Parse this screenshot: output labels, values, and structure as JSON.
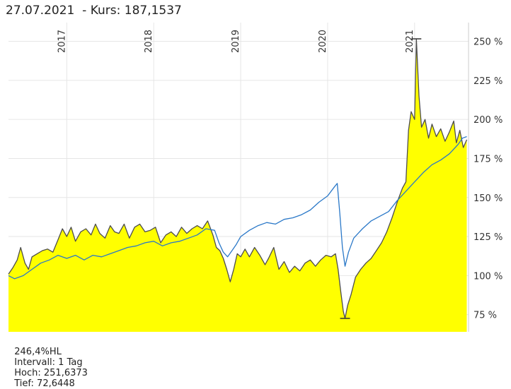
{
  "header": {
    "date": "27.07.2021",
    "price_label": "- Kurs: 187,1537"
  },
  "footer": {
    "change": "246,4%HL",
    "interval": "Intervall: 1 Tag",
    "high": "Hoch: 251,6373",
    "low": "Tief: 72,6448"
  },
  "chart_data": {
    "type": "area",
    "x_ticks": [
      "2017",
      "2018",
      "2019",
      "2020",
      "2021"
    ],
    "y_ticks": [
      "75 %",
      "100 %",
      "125 %",
      "150 %",
      "175 %",
      "200 %",
      "225 %",
      "250 %"
    ],
    "ylim": [
      64,
      262
    ],
    "xlim": [
      2016.33,
      2021.62
    ],
    "grid": true,
    "colors": {
      "fill": "#ffff00",
      "main_line": "#4d4d4d",
      "compare_line": "#2a78c8",
      "grid": "#e6e6e6"
    },
    "series": [
      {
        "role": "main",
        "points": [
          [
            2016.33,
            101
          ],
          [
            2016.38,
            105
          ],
          [
            2016.43,
            110
          ],
          [
            2016.47,
            118
          ],
          [
            2016.52,
            108
          ],
          [
            2016.56,
            104
          ],
          [
            2016.6,
            112
          ],
          [
            2016.66,
            114
          ],
          [
            2016.72,
            116
          ],
          [
            2016.78,
            117
          ],
          [
            2016.84,
            115
          ],
          [
            2016.9,
            123
          ],
          [
            2016.95,
            130
          ],
          [
            2017.0,
            125
          ],
          [
            2017.05,
            131
          ],
          [
            2017.1,
            122
          ],
          [
            2017.16,
            128
          ],
          [
            2017.22,
            130
          ],
          [
            2017.28,
            126
          ],
          [
            2017.33,
            133
          ],
          [
            2017.38,
            127
          ],
          [
            2017.44,
            124
          ],
          [
            2017.5,
            132
          ],
          [
            2017.55,
            128
          ],
          [
            2017.6,
            127
          ],
          [
            2017.66,
            133
          ],
          [
            2017.72,
            124
          ],
          [
            2017.78,
            131
          ],
          [
            2017.84,
            133
          ],
          [
            2017.9,
            128
          ],
          [
            2017.96,
            129
          ],
          [
            2018.02,
            131
          ],
          [
            2018.08,
            121
          ],
          [
            2018.14,
            126
          ],
          [
            2018.2,
            128
          ],
          [
            2018.26,
            125
          ],
          [
            2018.32,
            131
          ],
          [
            2018.38,
            127
          ],
          [
            2018.44,
            130
          ],
          [
            2018.5,
            132
          ],
          [
            2018.56,
            130
          ],
          [
            2018.62,
            135
          ],
          [
            2018.68,
            126
          ],
          [
            2018.72,
            118
          ],
          [
            2018.76,
            116
          ],
          [
            2018.8,
            111
          ],
          [
            2018.84,
            104
          ],
          [
            2018.88,
            96
          ],
          [
            2018.92,
            104
          ],
          [
            2018.96,
            114
          ],
          [
            2019.0,
            112
          ],
          [
            2019.05,
            117
          ],
          [
            2019.1,
            112
          ],
          [
            2019.16,
            118
          ],
          [
            2019.22,
            113
          ],
          [
            2019.28,
            107
          ],
          [
            2019.32,
            111
          ],
          [
            2019.38,
            118
          ],
          [
            2019.44,
            104
          ],
          [
            2019.5,
            109
          ],
          [
            2019.56,
            102
          ],
          [
            2019.62,
            106
          ],
          [
            2019.68,
            103
          ],
          [
            2019.74,
            108
          ],
          [
            2019.8,
            110
          ],
          [
            2019.86,
            106
          ],
          [
            2019.92,
            110
          ],
          [
            2019.98,
            113
          ],
          [
            2020.04,
            112
          ],
          [
            2020.09,
            114
          ],
          [
            2020.12,
            104
          ],
          [
            2020.15,
            90
          ],
          [
            2020.18,
            77
          ],
          [
            2020.2,
            72.6
          ],
          [
            2020.23,
            81
          ],
          [
            2020.27,
            88
          ],
          [
            2020.32,
            99
          ],
          [
            2020.38,
            104
          ],
          [
            2020.44,
            108
          ],
          [
            2020.5,
            111
          ],
          [
            2020.56,
            116
          ],
          [
            2020.62,
            121
          ],
          [
            2020.68,
            128
          ],
          [
            2020.74,
            137
          ],
          [
            2020.8,
            147
          ],
          [
            2020.86,
            156
          ],
          [
            2020.9,
            160
          ],
          [
            2020.93,
            193
          ],
          [
            2020.96,
            205
          ],
          [
            2021.0,
            200
          ],
          [
            2021.02,
            251.6
          ],
          [
            2021.05,
            215
          ],
          [
            2021.08,
            195
          ],
          [
            2021.12,
            200
          ],
          [
            2021.16,
            188
          ],
          [
            2021.2,
            197
          ],
          [
            2021.25,
            189
          ],
          [
            2021.3,
            194
          ],
          [
            2021.35,
            186
          ],
          [
            2021.4,
            192
          ],
          [
            2021.45,
            199
          ],
          [
            2021.48,
            185
          ],
          [
            2021.52,
            193
          ],
          [
            2021.56,
            182
          ],
          [
            2021.6,
            187
          ]
        ]
      },
      {
        "role": "comparison",
        "points": [
          [
            2016.33,
            100
          ],
          [
            2016.4,
            98
          ],
          [
            2016.5,
            100
          ],
          [
            2016.6,
            104
          ],
          [
            2016.7,
            108
          ],
          [
            2016.8,
            110
          ],
          [
            2016.9,
            113
          ],
          [
            2017.0,
            111
          ],
          [
            2017.1,
            113
          ],
          [
            2017.2,
            110
          ],
          [
            2017.3,
            113
          ],
          [
            2017.4,
            112
          ],
          [
            2017.5,
            114
          ],
          [
            2017.6,
            116
          ],
          [
            2017.7,
            118
          ],
          [
            2017.8,
            119
          ],
          [
            2017.9,
            121
          ],
          [
            2018.0,
            122
          ],
          [
            2018.1,
            119
          ],
          [
            2018.2,
            121
          ],
          [
            2018.3,
            122
          ],
          [
            2018.4,
            124
          ],
          [
            2018.5,
            126
          ],
          [
            2018.6,
            130
          ],
          [
            2018.7,
            129
          ],
          [
            2018.75,
            121
          ],
          [
            2018.8,
            115
          ],
          [
            2018.85,
            112
          ],
          [
            2018.9,
            116
          ],
          [
            2018.95,
            120
          ],
          [
            2019.0,
            125
          ],
          [
            2019.1,
            129
          ],
          [
            2019.2,
            132
          ],
          [
            2019.3,
            134
          ],
          [
            2019.4,
            133
          ],
          [
            2019.5,
            136
          ],
          [
            2019.6,
            137
          ],
          [
            2019.7,
            139
          ],
          [
            2019.8,
            142
          ],
          [
            2019.9,
            147
          ],
          [
            2020.0,
            151
          ],
          [
            2020.08,
            157
          ],
          [
            2020.11,
            159
          ],
          [
            2020.14,
            140
          ],
          [
            2020.17,
            118
          ],
          [
            2020.2,
            106
          ],
          [
            2020.24,
            115
          ],
          [
            2020.3,
            124
          ],
          [
            2020.4,
            130
          ],
          [
            2020.5,
            135
          ],
          [
            2020.6,
            138
          ],
          [
            2020.7,
            141
          ],
          [
            2020.8,
            148
          ],
          [
            2020.9,
            154
          ],
          [
            2021.0,
            160
          ],
          [
            2021.1,
            166
          ],
          [
            2021.2,
            171
          ],
          [
            2021.3,
            174
          ],
          [
            2021.4,
            178
          ],
          [
            2021.5,
            184
          ],
          [
            2021.55,
            188
          ],
          [
            2021.6,
            189
          ]
        ]
      }
    ]
  }
}
